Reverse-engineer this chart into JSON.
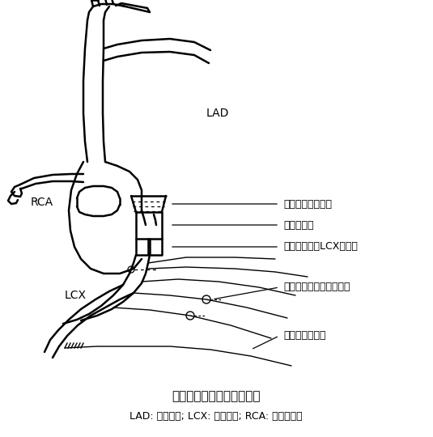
{
  "title": "液压闭合器模型制备示意图",
  "subtitle": "LAD: 左前降支; LCX: 左回旋支; RCA: 右冠状动脉",
  "label_LAD": "LAD",
  "label_RCA": "RCA",
  "label_LCX": "LCX",
  "ann1_text": "超声血流速度探头",
  "ann2_text": "液压闭合器",
  "ann3_text": "超声探测器（LCX直径）",
  "ann4_text": "超声探测器（节段长度）",
  "ann5_text": "远端测压用导管",
  "bg_color": "#ffffff",
  "line_color": "#000000",
  "font_color": "#000000"
}
